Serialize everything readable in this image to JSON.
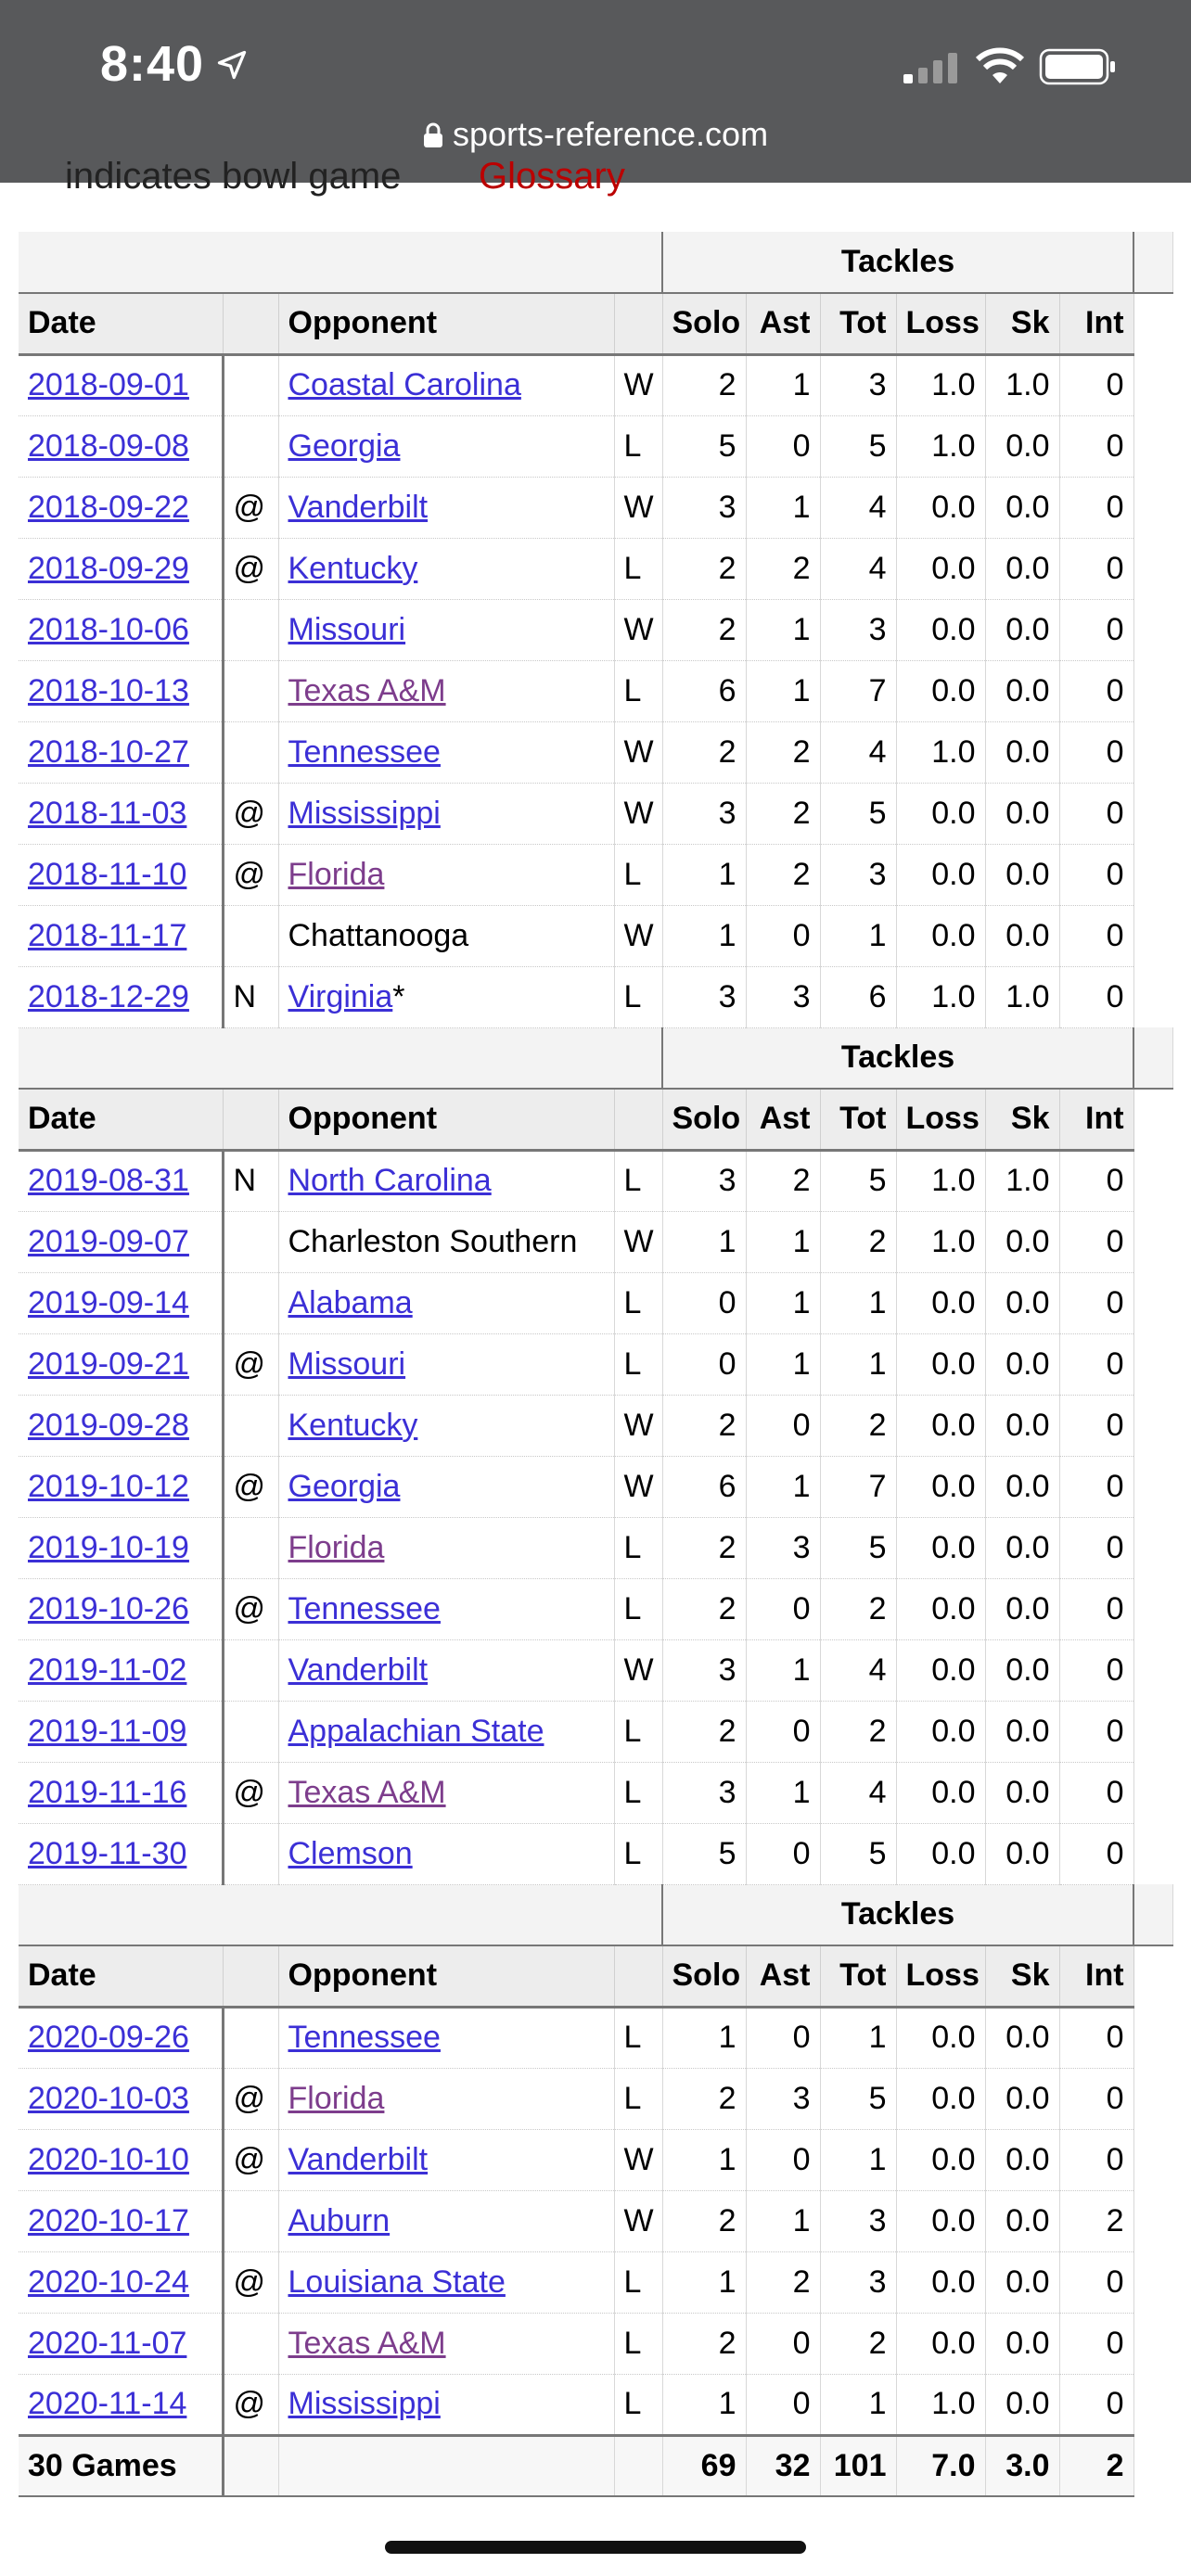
{
  "status": {
    "time": "8:40",
    "url": "sports-reference.com"
  },
  "partial": {
    "text1": "indicates bowl game",
    "glossary": "Glossary"
  },
  "tackles_label": "Tackles",
  "headers": {
    "date": "Date",
    "opponent": "Opponent",
    "solo": "Solo",
    "ast": "Ast",
    "tot": "Tot",
    "loss": "Loss",
    "sk": "Sk",
    "int": "Int"
  },
  "sections": [
    {
      "rows": [
        [
          "2018-09-01",
          "",
          "Coastal Carolina",
          "lnk",
          "",
          "W",
          "2",
          "1",
          "3",
          "1.0",
          "1.0",
          "0"
        ],
        [
          "2018-09-08",
          "",
          "Georgia",
          "lnk",
          "",
          "L",
          "5",
          "0",
          "5",
          "1.0",
          "0.0",
          "0"
        ],
        [
          "2018-09-22",
          "@",
          "Vanderbilt",
          "lnk",
          "",
          "W",
          "3",
          "1",
          "4",
          "0.0",
          "0.0",
          "0"
        ],
        [
          "2018-09-29",
          "@",
          "Kentucky",
          "lnk",
          "",
          "L",
          "2",
          "2",
          "4",
          "0.0",
          "0.0",
          "0"
        ],
        [
          "2018-10-06",
          "",
          "Missouri",
          "lnk",
          "",
          "W",
          "2",
          "1",
          "3",
          "0.0",
          "0.0",
          "0"
        ],
        [
          "2018-10-13",
          "",
          "Texas A&M",
          "vis",
          "",
          "L",
          "6",
          "1",
          "7",
          "0.0",
          "0.0",
          "0"
        ],
        [
          "2018-10-27",
          "",
          "Tennessee",
          "lnk",
          "",
          "W",
          "2",
          "2",
          "4",
          "1.0",
          "0.0",
          "0"
        ],
        [
          "2018-11-03",
          "@",
          "Mississippi",
          "lnk",
          "",
          "W",
          "3",
          "2",
          "5",
          "0.0",
          "0.0",
          "0"
        ],
        [
          "2018-11-10",
          "@",
          "Florida",
          "vis",
          "",
          "L",
          "1",
          "2",
          "3",
          "0.0",
          "0.0",
          "0"
        ],
        [
          "2018-11-17",
          "",
          "Chattanooga",
          "plain",
          "",
          "W",
          "1",
          "0",
          "1",
          "0.0",
          "0.0",
          "0"
        ],
        [
          "2018-12-29",
          "N",
          "Virginia",
          "lnk",
          "*",
          "L",
          "3",
          "3",
          "6",
          "1.0",
          "1.0",
          "0"
        ]
      ]
    },
    {
      "rows": [
        [
          "2019-08-31",
          "N",
          "North Carolina",
          "lnk",
          "",
          "L",
          "3",
          "2",
          "5",
          "1.0",
          "1.0",
          "0"
        ],
        [
          "2019-09-07",
          "",
          "Charleston Southern",
          "plain",
          "",
          "W",
          "1",
          "1",
          "2",
          "1.0",
          "0.0",
          "0"
        ],
        [
          "2019-09-14",
          "",
          "Alabama",
          "lnk",
          "",
          "L",
          "0",
          "1",
          "1",
          "0.0",
          "0.0",
          "0"
        ],
        [
          "2019-09-21",
          "@",
          "Missouri",
          "lnk",
          "",
          "L",
          "0",
          "1",
          "1",
          "0.0",
          "0.0",
          "0"
        ],
        [
          "2019-09-28",
          "",
          "Kentucky",
          "lnk",
          "",
          "W",
          "2",
          "0",
          "2",
          "0.0",
          "0.0",
          "0"
        ],
        [
          "2019-10-12",
          "@",
          "Georgia",
          "lnk",
          "",
          "W",
          "6",
          "1",
          "7",
          "0.0",
          "0.0",
          "0"
        ],
        [
          "2019-10-19",
          "",
          "Florida",
          "vis",
          "",
          "L",
          "2",
          "3",
          "5",
          "0.0",
          "0.0",
          "0"
        ],
        [
          "2019-10-26",
          "@",
          "Tennessee",
          "lnk",
          "",
          "L",
          "2",
          "0",
          "2",
          "0.0",
          "0.0",
          "0"
        ],
        [
          "2019-11-02",
          "",
          "Vanderbilt",
          "lnk",
          "",
          "W",
          "3",
          "1",
          "4",
          "0.0",
          "0.0",
          "0"
        ],
        [
          "2019-11-09",
          "",
          "Appalachian State",
          "lnk",
          "",
          "L",
          "2",
          "0",
          "2",
          "0.0",
          "0.0",
          "0"
        ],
        [
          "2019-11-16",
          "@",
          "Texas A&M",
          "vis",
          "",
          "L",
          "3",
          "1",
          "4",
          "0.0",
          "0.0",
          "0"
        ],
        [
          "2019-11-30",
          "",
          "Clemson",
          "lnk",
          "",
          "L",
          "5",
          "0",
          "5",
          "0.0",
          "0.0",
          "0"
        ]
      ]
    },
    {
      "rows": [
        [
          "2020-09-26",
          "",
          "Tennessee",
          "lnk",
          "",
          "L",
          "1",
          "0",
          "1",
          "0.0",
          "0.0",
          "0"
        ],
        [
          "2020-10-03",
          "@",
          "Florida",
          "vis",
          "",
          "L",
          "2",
          "3",
          "5",
          "0.0",
          "0.0",
          "0"
        ],
        [
          "2020-10-10",
          "@",
          "Vanderbilt",
          "lnk",
          "",
          "W",
          "1",
          "0",
          "1",
          "0.0",
          "0.0",
          "0"
        ],
        [
          "2020-10-17",
          "",
          "Auburn",
          "lnk",
          "",
          "W",
          "2",
          "1",
          "3",
          "0.0",
          "0.0",
          "2"
        ],
        [
          "2020-10-24",
          "@",
          "Louisiana State",
          "lnk",
          "",
          "L",
          "1",
          "2",
          "3",
          "0.0",
          "0.0",
          "0"
        ],
        [
          "2020-11-07",
          "",
          "Texas A&M",
          "vis",
          "",
          "L",
          "2",
          "0",
          "2",
          "0.0",
          "0.0",
          "0"
        ],
        [
          "2020-11-14",
          "@",
          "Mississippi",
          "lnk",
          "",
          "L",
          "1",
          "0",
          "1",
          "1.0",
          "0.0",
          "0"
        ]
      ]
    }
  ],
  "totals": {
    "label": "30 Games",
    "solo": "69",
    "ast": "32",
    "tot": "101",
    "loss": "7.0",
    "sk": "3.0",
    "int": "2"
  }
}
